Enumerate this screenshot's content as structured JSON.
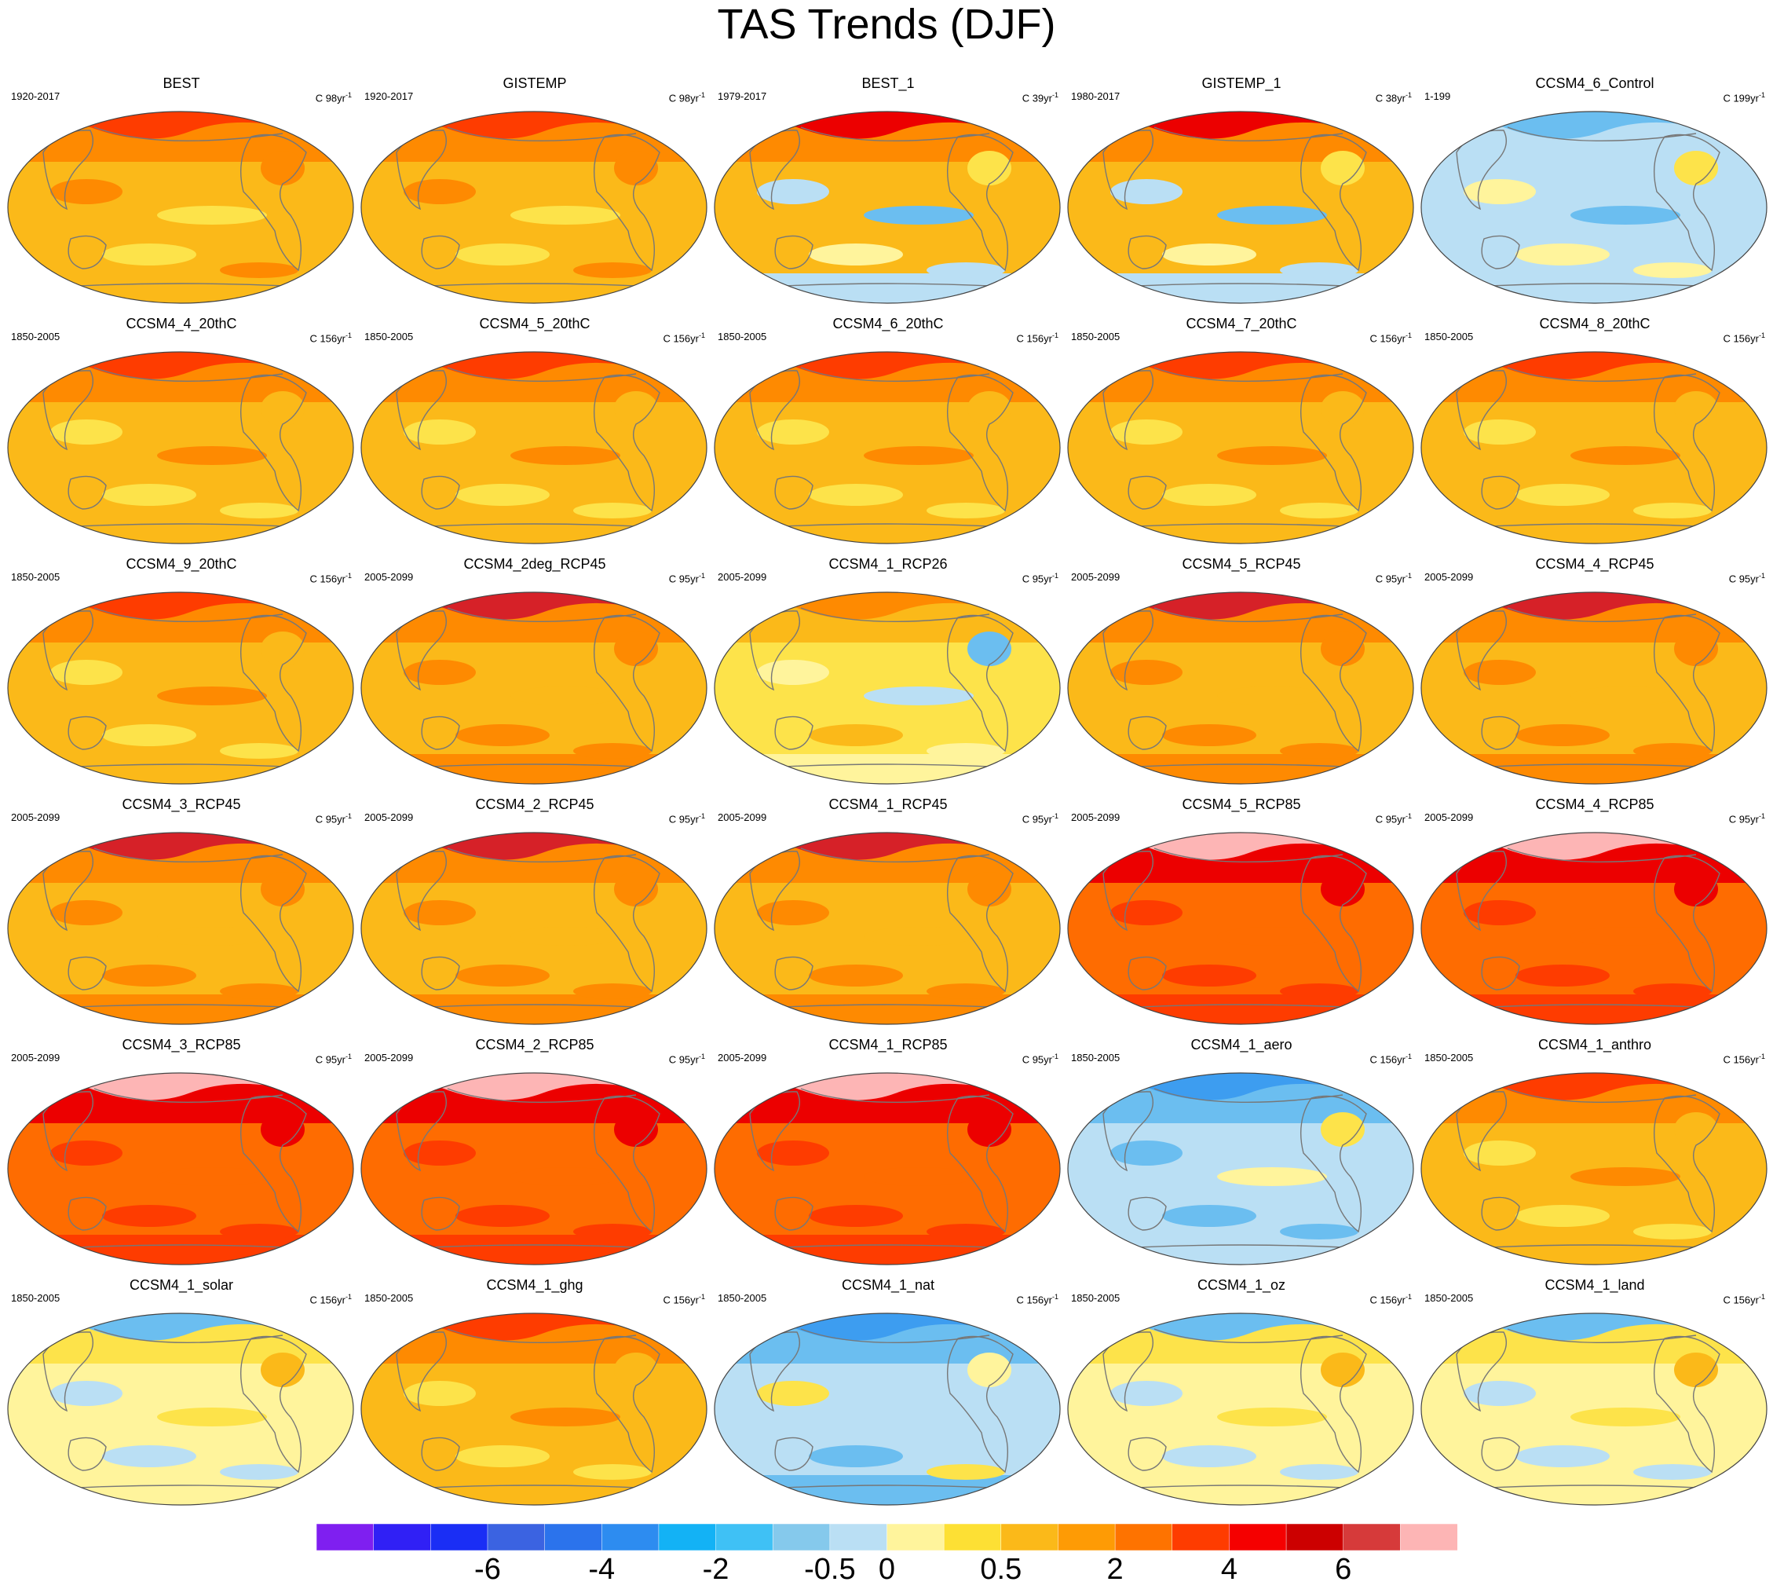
{
  "title": "TAS Trends (DJF)",
  "panels": [
    {
      "name": "BEST",
      "period": "1920-2017",
      "units_prefix": "C",
      "units_num": "98yr",
      "units_exp": "-1",
      "pattern": "warm-obs"
    },
    {
      "name": "GISTEMP",
      "period": "1920-2017",
      "units_prefix": "C",
      "units_num": "98yr",
      "units_exp": "-1",
      "pattern": "warm-obs"
    },
    {
      "name": "BEST_1",
      "period": "1979-2017",
      "units_prefix": "C",
      "units_num": "39yr",
      "units_exp": "-1",
      "pattern": "mixed-obs"
    },
    {
      "name": "GISTEMP_1",
      "period": "1980-2017",
      "units_prefix": "C",
      "units_num": "38yr",
      "units_exp": "-1",
      "pattern": "mixed-obs"
    },
    {
      "name": "CCSM4_6_Control",
      "period": "1-199",
      "units_prefix": "C",
      "units_num": "199yr",
      "units_exp": "-1",
      "pattern": "control"
    },
    {
      "name": "CCSM4_4_20thC",
      "period": "1850-2005",
      "units_prefix": "C",
      "units_num": "156yr",
      "units_exp": "-1",
      "pattern": "hist"
    },
    {
      "name": "CCSM4_5_20thC",
      "period": "1850-2005",
      "units_prefix": "C",
      "units_num": "156yr",
      "units_exp": "-1",
      "pattern": "hist"
    },
    {
      "name": "CCSM4_6_20thC",
      "period": "1850-2005",
      "units_prefix": "C",
      "units_num": "156yr",
      "units_exp": "-1",
      "pattern": "hist"
    },
    {
      "name": "CCSM4_7_20thC",
      "period": "1850-2005",
      "units_prefix": "C",
      "units_num": "156yr",
      "units_exp": "-1",
      "pattern": "hist"
    },
    {
      "name": "CCSM4_8_20thC",
      "period": "1850-2005",
      "units_prefix": "C",
      "units_num": "156yr",
      "units_exp": "-1",
      "pattern": "hist"
    },
    {
      "name": "CCSM4_9_20thC",
      "period": "1850-2005",
      "units_prefix": "C",
      "units_num": "156yr",
      "units_exp": "-1",
      "pattern": "hist"
    },
    {
      "name": "CCSM4_2deg_RCP45",
      "period": "2005-2099",
      "units_prefix": "C",
      "units_num": "95yr",
      "units_exp": "-1",
      "pattern": "rcp45"
    },
    {
      "name": "CCSM4_1_RCP26",
      "period": "2005-2099",
      "units_prefix": "C",
      "units_num": "95yr",
      "units_exp": "-1",
      "pattern": "rcp26"
    },
    {
      "name": "CCSM4_5_RCP45",
      "period": "2005-2099",
      "units_prefix": "C",
      "units_num": "95yr",
      "units_exp": "-1",
      "pattern": "rcp45"
    },
    {
      "name": "CCSM4_4_RCP45",
      "period": "2005-2099",
      "units_prefix": "C",
      "units_num": "95yr",
      "units_exp": "-1",
      "pattern": "rcp45"
    },
    {
      "name": "CCSM4_3_RCP45",
      "period": "2005-2099",
      "units_prefix": "C",
      "units_num": "95yr",
      "units_exp": "-1",
      "pattern": "rcp45"
    },
    {
      "name": "CCSM4_2_RCP45",
      "period": "2005-2099",
      "units_prefix": "C",
      "units_num": "95yr",
      "units_exp": "-1",
      "pattern": "rcp45"
    },
    {
      "name": "CCSM4_1_RCP45",
      "period": "2005-2099",
      "units_prefix": "C",
      "units_num": "95yr",
      "units_exp": "-1",
      "pattern": "rcp45"
    },
    {
      "name": "CCSM4_5_RCP85",
      "period": "2005-2099",
      "units_prefix": "C",
      "units_num": "95yr",
      "units_exp": "-1",
      "pattern": "rcp85"
    },
    {
      "name": "CCSM4_4_RCP85",
      "period": "2005-2099",
      "units_prefix": "C",
      "units_num": "95yr",
      "units_exp": "-1",
      "pattern": "rcp85"
    },
    {
      "name": "CCSM4_3_RCP85",
      "period": "2005-2099",
      "units_prefix": "C",
      "units_num": "95yr",
      "units_exp": "-1",
      "pattern": "rcp85"
    },
    {
      "name": "CCSM4_2_RCP85",
      "period": "2005-2099",
      "units_prefix": "C",
      "units_num": "95yr",
      "units_exp": "-1",
      "pattern": "rcp85"
    },
    {
      "name": "CCSM4_1_RCP85",
      "period": "2005-2099",
      "units_prefix": "C",
      "units_num": "95yr",
      "units_exp": "-1",
      "pattern": "rcp85"
    },
    {
      "name": "CCSM4_1_aero",
      "period": "1850-2005",
      "units_prefix": "C",
      "units_num": "156yr",
      "units_exp": "-1",
      "pattern": "aero"
    },
    {
      "name": "CCSM4_1_anthro",
      "period": "1850-2005",
      "units_prefix": "C",
      "units_num": "156yr",
      "units_exp": "-1",
      "pattern": "hist"
    },
    {
      "name": "CCSM4_1_solar",
      "period": "1850-2005",
      "units_prefix": "C",
      "units_num": "156yr",
      "units_exp": "-1",
      "pattern": "weak"
    },
    {
      "name": "CCSM4_1_ghg",
      "period": "1850-2005",
      "units_prefix": "C",
      "units_num": "156yr",
      "units_exp": "-1",
      "pattern": "hist"
    },
    {
      "name": "CCSM4_1_nat",
      "period": "1850-2005",
      "units_prefix": "C",
      "units_num": "156yr",
      "units_exp": "-1",
      "pattern": "cool"
    },
    {
      "name": "CCSM4_1_oz",
      "period": "1850-2005",
      "units_prefix": "C",
      "units_num": "156yr",
      "units_exp": "-1",
      "pattern": "weak"
    },
    {
      "name": "CCSM4_1_land",
      "period": "1850-2005",
      "units_prefix": "C",
      "units_num": "156yr",
      "units_exp": "-1",
      "pattern": "weak"
    }
  ],
  "patterns": {
    "warm-obs": {
      "base": "#fbb919",
      "north": "#fe8a01",
      "north_cap": "#fe3c00",
      "south": "#fbb919",
      "blobs": [
        "#fe8a01",
        "#fde34a",
        "#fe8a01",
        "#fde34a"
      ]
    },
    "mixed-obs": {
      "base": "#fbb919",
      "north": "#fe8a01",
      "north_cap": "#ec0000",
      "south": "#badff4",
      "blobs": [
        "#badff4",
        "#6bbef0",
        "#fde34a",
        "#fff49c"
      ]
    },
    "control": {
      "base": "#badff4",
      "north": "#badff4",
      "north_cap": "#6bbef0",
      "south": "#badff4",
      "blobs": [
        "#fff49c",
        "#6bbef0",
        "#fde34a",
        "#fff49c"
      ]
    },
    "hist": {
      "base": "#fbb919",
      "north": "#fe8a01",
      "north_cap": "#fe3c00",
      "south": "#fbb919",
      "blobs": [
        "#fde34a",
        "#fe8a01",
        "#fbb919",
        "#fde34a"
      ]
    },
    "rcp26": {
      "base": "#fde34a",
      "north": "#fbb919",
      "north_cap": "#fe8a01",
      "south": "#fff49c",
      "blobs": [
        "#fff49c",
        "#badff4",
        "#6bbef0",
        "#fbb919"
      ]
    },
    "rcp45": {
      "base": "#fbb919",
      "north": "#fe8a01",
      "north_cap": "#d62128",
      "south": "#fe8a01",
      "blobs": [
        "#fe8a01",
        "#fbb919",
        "#fe8a01",
        "#fe8a01"
      ]
    },
    "rcp85": {
      "base": "#fe6c01",
      "north": "#ec0000",
      "north_cap": "#fdb5b5",
      "south": "#fe3c00",
      "blobs": [
        "#fe3c00",
        "#fe6c01",
        "#ec0000",
        "#fe3c00"
      ]
    },
    "aero": {
      "base": "#badff4",
      "north": "#6bbef0",
      "north_cap": "#3d9df0",
      "south": "#badff4",
      "blobs": [
        "#6bbef0",
        "#fff49c",
        "#fde34a",
        "#6bbef0"
      ]
    },
    "weak": {
      "base": "#fff49c",
      "north": "#fde34a",
      "north_cap": "#6bbef0",
      "south": "#fff49c",
      "blobs": [
        "#badff4",
        "#fde34a",
        "#fbb919",
        "#badff4"
      ]
    },
    "cool": {
      "base": "#badff4",
      "north": "#6bbef0",
      "north_cap": "#3d9df0",
      "south": "#6bbef0",
      "blobs": [
        "#fde34a",
        "#badff4",
        "#fff49c",
        "#6bbef0"
      ]
    }
  },
  "colorbar": {
    "colors": [
      "#7f1ff0",
      "#3020f5",
      "#1a2ef5",
      "#3b63e1",
      "#2b73ec",
      "#2d8cf0",
      "#13b2f5",
      "#3fc1f5",
      "#85c9ec",
      "#badff4",
      "#fff49c",
      "#fde034",
      "#fbb919",
      "#fe9b05",
      "#fe7300",
      "#fe3c00",
      "#f50000",
      "#cc0000",
      "#d63a3a",
      "#fdb5b5"
    ],
    "labels": [
      "-6",
      "-4",
      "-2",
      "-0.5",
      "0",
      "0.5",
      "2",
      "4",
      "6"
    ],
    "label_positions": [
      3,
      5,
      7,
      9,
      10,
      12,
      14,
      16,
      18
    ]
  }
}
